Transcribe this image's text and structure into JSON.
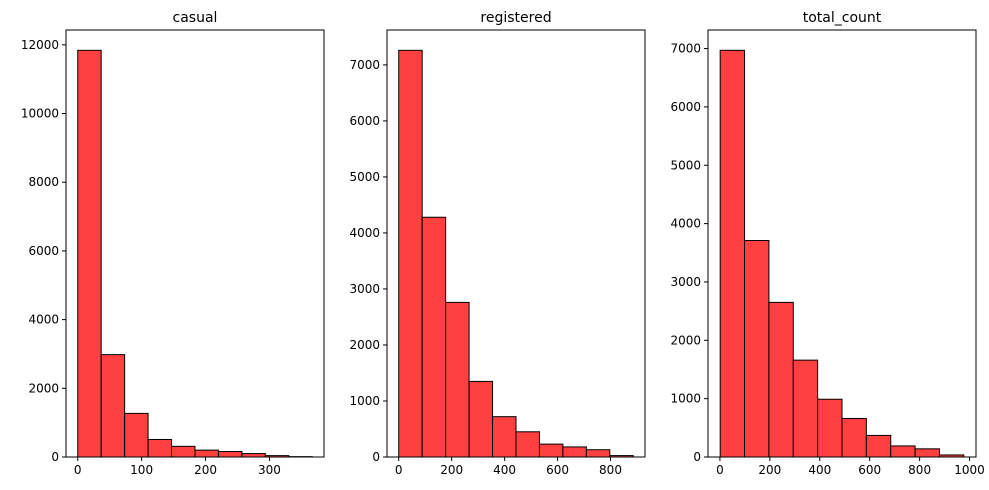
{
  "style": {
    "bar_color": "#FF4040",
    "edge_color": "#000000"
  },
  "chart_data": [
    {
      "type": "bar",
      "title": "casual",
      "bin_edges": [
        0,
        36.7,
        73.4,
        110.1,
        146.8,
        183.5,
        220.2,
        256.9,
        293.6,
        330.3,
        367
      ],
      "values": [
        11840,
        2980,
        1270,
        510,
        310,
        200,
        160,
        100,
        40,
        10
      ],
      "xlim": [
        -18.35,
        385.35
      ],
      "ylim": [
        0,
        12432
      ],
      "xticks": [
        0,
        100,
        200,
        300
      ],
      "yticks": [
        0,
        2000,
        4000,
        6000,
        8000,
        10000,
        12000
      ]
    },
    {
      "type": "bar",
      "title": "registered",
      "bin_edges": [
        0,
        88.6,
        177.2,
        265.8,
        354.4,
        443,
        531.6,
        620.2,
        708.8,
        797.4,
        886
      ],
      "values": [
        7260,
        4280,
        2760,
        1350,
        720,
        450,
        230,
        180,
        130,
        25
      ],
      "xlim": [
        -44.3,
        930.3
      ],
      "ylim": [
        0,
        7623
      ],
      "xticks": [
        0,
        200,
        400,
        600,
        800
      ],
      "yticks": [
        0,
        1000,
        2000,
        3000,
        4000,
        5000,
        6000,
        7000
      ]
    },
    {
      "type": "bar",
      "title": "total_count",
      "bin_edges": [
        1,
        98.6,
        196.2,
        293.8,
        391.4,
        489,
        586.6,
        684.2,
        781.8,
        879.4,
        977
      ],
      "values": [
        6970,
        3710,
        2650,
        1660,
        990,
        660,
        370,
        190,
        140,
        35
      ],
      "xlim": [
        -47.8,
        1025.8
      ],
      "ylim": [
        0,
        7318
      ],
      "xticks": [
        0,
        200,
        400,
        600,
        800,
        1000
      ],
      "yticks": [
        0,
        1000,
        2000,
        3000,
        4000,
        5000,
        6000,
        7000
      ]
    }
  ]
}
